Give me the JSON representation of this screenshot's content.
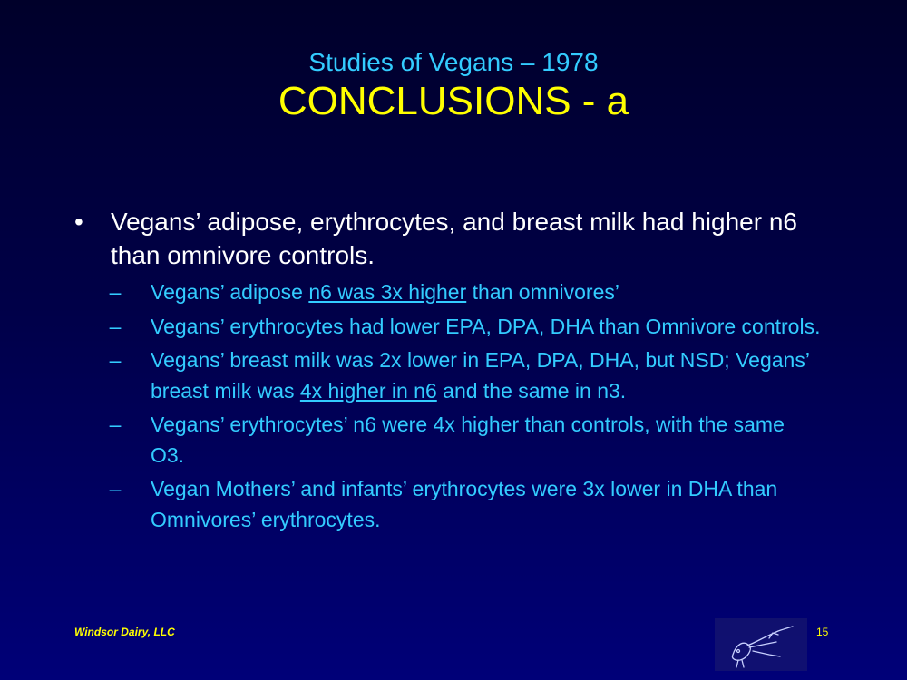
{
  "header": {
    "subtitle": "Studies of Vegans – 1978",
    "title": "CONCLUSIONS - a"
  },
  "bullets": [
    {
      "marker": "•",
      "text": "Vegans’ adipose, erythrocytes, and breast milk had higher n6 than omnivore controls.",
      "subitems": [
        {
          "marker": "–",
          "pre": "Vegans’ adipose ",
          "underlined": "n6 was 3x higher",
          "post": " than omnivores’"
        },
        {
          "marker": "–",
          "text": "Vegans’ erythrocytes had lower EPA, DPA, DHA than Omnivore controls."
        },
        {
          "marker": "–",
          "pre": "Vegans’ breast milk was 2x lower in EPA, DPA, DHA, but NSD; Vegans’ breast milk was ",
          "underlined": "4x higher in n6",
          "post": " and the same in n3."
        },
        {
          "marker": "–",
          "text": "Vegans’ erythrocytes’ n6 were 4x higher than controls, with the same O3."
        },
        {
          "marker": "–",
          "text": "Vegan Mothers’ and infants’ erythrocytes were 3x lower in DHA than Omnivores’ erythrocytes."
        }
      ]
    }
  ],
  "footer": {
    "company": "Windsor Dairy, LLC",
    "page_number": "15",
    "logo_icon": "bird-sketch-logo-icon"
  },
  "colors": {
    "background_top": "#00002a",
    "background_bottom": "#000078",
    "title": "#ffff00",
    "subtitle": "#33ccff",
    "bullet_text": "#ffffff",
    "subbullet_text": "#33ccff",
    "footer": "#ffff00"
  }
}
